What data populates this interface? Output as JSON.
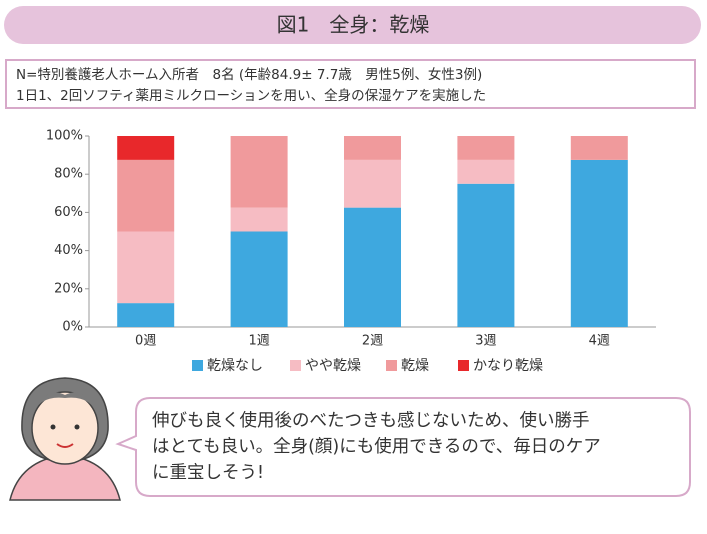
{
  "header": {
    "title": "図1　全身：乾燥"
  },
  "info": {
    "lines": [
      "N=特別養護老人ホーム入所者　8名 (年齢84.9± 7.7歳　男性5例、女性3例)",
      "1日1、2回ソフティ薬用ミルクローションを用い、全身の保湿ケアを実施した"
    ]
  },
  "chart_data": {
    "type": "stacked_bar",
    "categories": [
      "0週",
      "1週",
      "2週",
      "3週",
      "4週"
    ],
    "series": [
      {
        "name": "乾燥なし",
        "color": "#3ea8df",
        "values": [
          12.5,
          50,
          62.5,
          75,
          87.5
        ]
      },
      {
        "name": "やや乾燥",
        "color": "#f6bcc3",
        "values": [
          37.5,
          12.5,
          25,
          12.5,
          0
        ]
      },
      {
        "name": "乾燥",
        "color": "#f09a9c",
        "values": [
          37.5,
          37.5,
          12.5,
          12.5,
          12.5
        ]
      },
      {
        "name": "かなり乾燥",
        "color": "#e8282b",
        "values": [
          12.5,
          0,
          0,
          0,
          0
        ]
      }
    ],
    "ylim": [
      0,
      100
    ],
    "yticks": [
      {
        "value": 0,
        "label": "0%"
      },
      {
        "value": 20,
        "label": "20%"
      },
      {
        "value": 40,
        "label": "40%"
      },
      {
        "value": 60,
        "label": "60%"
      },
      {
        "value": 80,
        "label": "80%"
      },
      {
        "value": 100,
        "label": "100%"
      }
    ],
    "legend": "bottom"
  },
  "comment": {
    "lines": [
      "伸びも良く使用後のべたつきも感じないため、使い勝手",
      "はとても良い。全身(顔)にも使用できるので、毎日のケア",
      "に重宝しそう!"
    ]
  }
}
